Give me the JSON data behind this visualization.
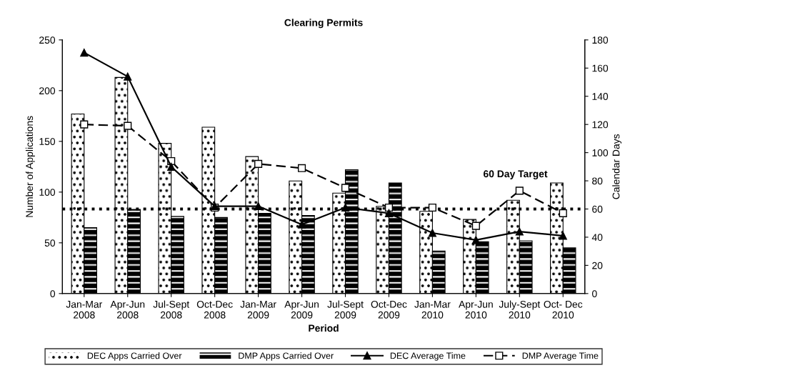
{
  "chart_data": {
    "type": "bar",
    "title": "Clearing Permits",
    "xlabel": "Period",
    "ylabel": "Number of Applications",
    "y2label": "Calendar Days",
    "categories": [
      "Jan-Mar\n2008",
      "Apr-Jun\n2008",
      "Jul-Sept\n2008",
      "Oct-Dec\n2008",
      "Jan-Mar\n2009",
      "Apr-Jun\n2009",
      "Jul-Sept\n2009",
      "Oct-Dec\n2009",
      "Jan-Mar\n2010",
      "Apr-Jun\n2010",
      "July-Sept\n2010",
      "Oct- Dec\n2010"
    ],
    "series": [
      {
        "name": "DEC Apps Carried Over",
        "color": "#ffffff",
        "values": [
          177,
          213,
          148,
          164,
          135,
          111,
          99,
          86,
          81,
          73,
          92,
          109
        ]
      },
      {
        "name": "DMP Apps Carried Over",
        "color": "#000000",
        "values": [
          65,
          83,
          76,
          75,
          79,
          77,
          122,
          109,
          42,
          51,
          52,
          45
        ]
      },
      {
        "name": "DEC Average Time",
        "type": "line",
        "axis": "y2",
        "color": "#000000",
        "marker": "triangle",
        "line_style": "solid",
        "values": [
          171,
          154,
          90,
          62,
          62,
          49,
          61,
          57,
          43,
          38,
          44,
          41
        ]
      },
      {
        "name": "DMP Average Time",
        "type": "line",
        "axis": "y2",
        "color": "#000000",
        "marker": "square",
        "line_style": "dashed",
        "values": [
          120,
          119,
          94,
          61,
          92,
          89,
          75,
          61,
          61,
          48,
          73,
          57
        ]
      }
    ],
    "ylim": [
      0,
      250
    ],
    "yticks": [
      0,
      50,
      100,
      150,
      200,
      250
    ],
    "y2lim": [
      0,
      180
    ],
    "y2ticks": [
      0,
      20,
      40,
      60,
      80,
      100,
      120,
      140,
      160,
      180
    ],
    "ref_lines": [
      {
        "axis": "y2",
        "value": 60,
        "label": "60 Day Target",
        "color": "#000000",
        "line_style": "dotted"
      }
    ],
    "grid": false,
    "legend": "bottom"
  }
}
